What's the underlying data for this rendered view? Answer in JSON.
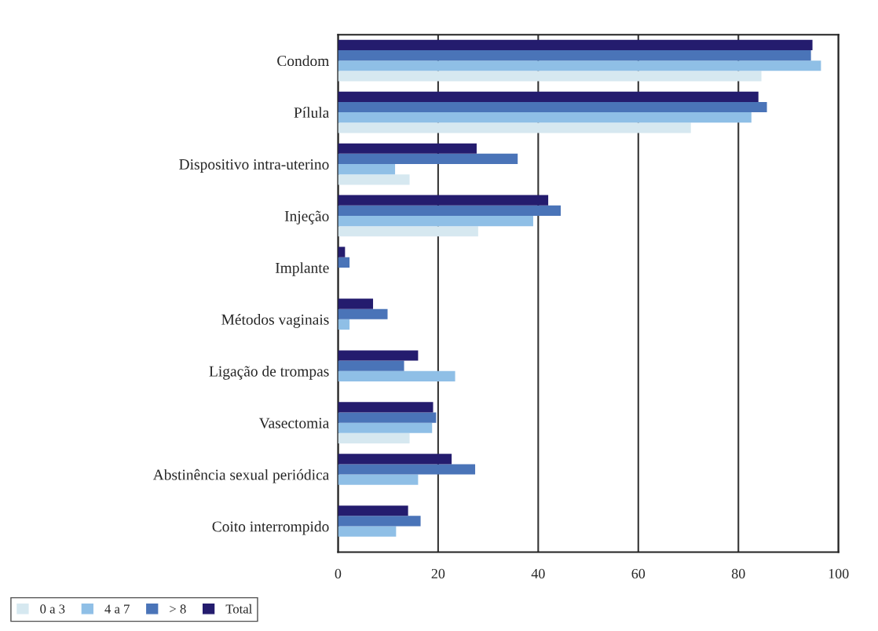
{
  "chart_data": {
    "type": "bar",
    "orientation": "horizontal",
    "categories": [
      "Condom",
      "Pílula",
      "Dispositivo intra-uterino",
      "Injeção",
      "Implante",
      "Métodos vaginais",
      "Ligação de trompas",
      "Vasectomia",
      "Abstinência sexual periódica",
      "Coito interrompido"
    ],
    "series": [
      {
        "name": "0 a 3",
        "color": "#d6e8f0",
        "values": [
          84.6,
          70.5,
          14.3,
          28,
          0,
          0,
          0,
          14.3,
          0,
          0
        ]
      },
      {
        "name": "4 a 7",
        "color": "#8fbfe6",
        "values": [
          96.5,
          82.6,
          11.4,
          39,
          0,
          2.3,
          23.4,
          18.8,
          16,
          11.6
        ]
      },
      {
        "name": "> 8",
        "color": "#4a74b8",
        "values": [
          94.5,
          85.7,
          35.9,
          44.5,
          2.3,
          9.9,
          13.2,
          19.6,
          27.4,
          16.5
        ]
      },
      {
        "name": "Total",
        "color": "#241c6e",
        "values": [
          94.8,
          84,
          27.7,
          42,
          1.4,
          7,
          16,
          19,
          22.7,
          14
        ]
      }
    ],
    "xlim": [
      0,
      100
    ],
    "xticks": [
      0,
      20,
      40,
      60,
      80,
      100
    ],
    "grid": "x",
    "legend": "bottom left"
  }
}
